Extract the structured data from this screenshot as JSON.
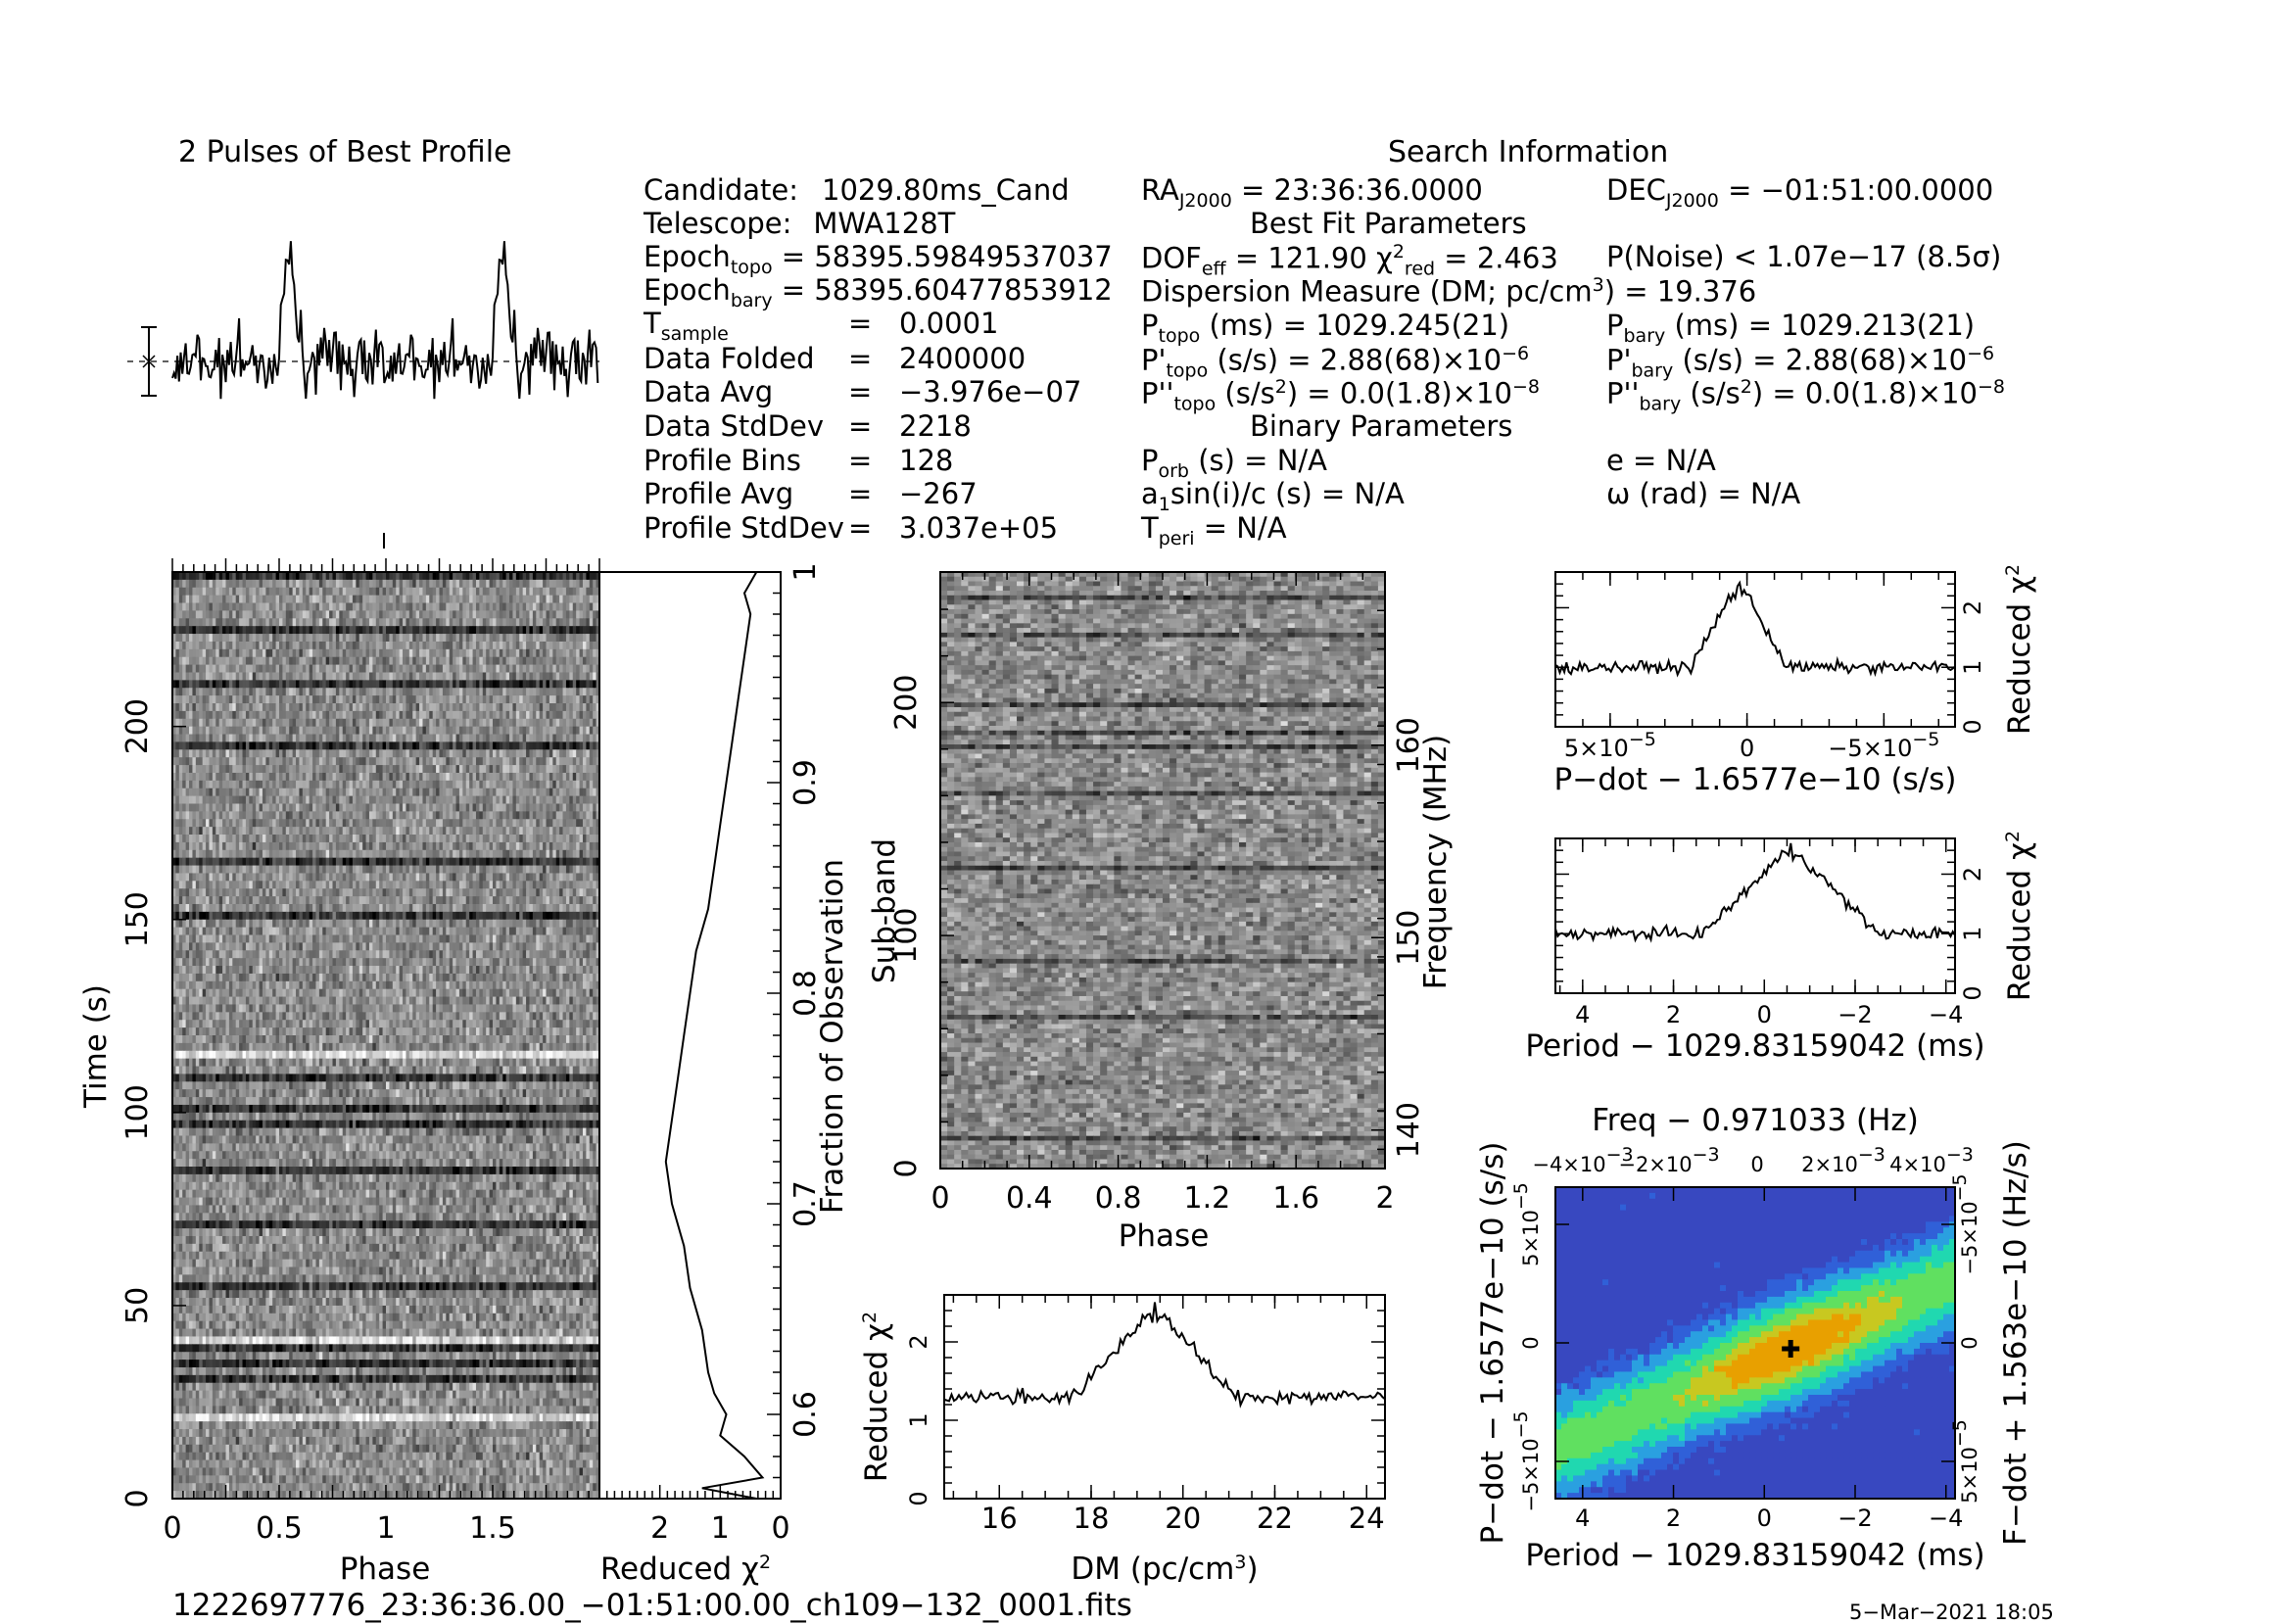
{
  "profile_title": "2 Pulses of Best Profile",
  "search_title": "Search Information",
  "candidate": {
    "candidate_label": "Candidate:",
    "candidate_value": "1029.80ms_Cand",
    "telescope_label": "Telescope:",
    "telescope_value": "MWA128T",
    "epoch_topo_label": "Epoch",
    "epoch_topo_sub": "topo",
    "epoch_topo_value": "= 58395.59849537037",
    "epoch_bary_label": "Epoch",
    "epoch_bary_sub": "bary",
    "epoch_bary_value": "= 58395.60477853912",
    "tsample_label": "T",
    "tsample_sub": "sample",
    "tsample_value": "0.0001",
    "data_folded_label": "Data Folded",
    "data_folded_value": "2400000",
    "data_avg_label": "Data Avg",
    "data_avg_value": "−3.976e−07",
    "data_stddev_label": "Data StdDev",
    "data_stddev_value": "2218",
    "profile_bins_label": "Profile Bins",
    "profile_bins_value": "128",
    "profile_avg_label": "Profile Avg",
    "profile_avg_value": "−267",
    "profile_stddev_label": "Profile StdDev",
    "profile_stddev_value": "3.037e+05",
    "equals": "="
  },
  "search": {
    "ra_label": "RA",
    "ra_sub": "J2000",
    "ra_value": "= 23:36:36.0000",
    "dec_label": "DEC",
    "dec_sub": "J2000",
    "dec_value": "= −01:51:00.0000",
    "best_fit_header": "Best Fit Parameters",
    "dof_label": "DOF",
    "dof_sub": "eff",
    "dof_value": "= 121.90",
    "chi_label": "χ",
    "chi_sup": "2",
    "chi_sub": "red",
    "chi_value": "= 2.463",
    "pnoise": "P(Noise) < 1.07e−17   (8.5σ)",
    "dm_text": "Dispersion Measure (DM; pc/cm",
    "dm_sup": "3",
    "dm_value": ") = 19.376",
    "ptopo_label": "P",
    "ptopo_sub": "topo",
    "ptopo_value": " (ms) =   1029.245(21)",
    "pbary_label": "P",
    "pbary_sub": "bary",
    "pbary_value": " (ms) =   1029.213(21)",
    "pdtopo_label": "P'",
    "pdtopo_sub": "topo",
    "pdtopo_value": " (s/s) =   2.88(68)×10",
    "pdtopo_exp": "−6",
    "pdbary_label": "P'",
    "pdbary_sub": "bary",
    "pdbary_value": " (s/s) =   2.88(68)×10",
    "pdbary_exp": "−6",
    "pddtopo_label": "P''",
    "pddtopo_sub": "topo",
    "pddtopo_value": " (s/s",
    "pddtopo_sup": "2",
    "pddtopo_value2": ") = 0.0(1.8)×10",
    "pddtopo_exp": "−8",
    "pddbary_label": "P''",
    "pddbary_sub": "bary",
    "pddbary_value": " (s/s",
    "pddbary_sup": "2",
    "pddbary_value2": ") = 0.0(1.8)×10",
    "pddbary_exp": "−8",
    "binary_header": "Binary Parameters",
    "porb_label": "P",
    "porb_sub": "orb",
    "porb_value": " (s) = N/A",
    "e_value": "e = N/A",
    "a1_label": "a",
    "a1_sub": "1",
    "a1_value": "sin(i)/c (s) = N/A",
    "omega_value": "ω (rad) = N/A",
    "tperi_label": "T",
    "tperi_sub": "peri",
    "tperi_value": " = N/A"
  },
  "footer": {
    "filename": "1222697776_23:36:36.00_−01:51:00.00_ch109−132_0001.fits",
    "date": "5−Mar−2021 18:05"
  },
  "colors": {
    "ink": "#000000",
    "plane_bg": "#3a55c8",
    "plane_mid": "#20e0a8",
    "plane_peak": "#e8a000"
  },
  "chart_data": [
    {
      "id": "time_phase",
      "type": "heatmap",
      "xlabel": "Phase",
      "ylabel": "Time (s)",
      "xlim": [
        0,
        2
      ],
      "ylim": [
        0,
        240
      ],
      "xticks": [
        "0",
        "0.5",
        "1",
        "1.5"
      ],
      "yticks": [
        "0",
        "50",
        "100",
        "150",
        "200"
      ],
      "ytick_values": [
        0,
        50,
        100,
        150,
        200
      ]
    },
    {
      "id": "fraction_chi",
      "type": "line",
      "xlabel": "Reduced χ",
      "xlabel_sup": "2",
      "ylabel": "Fraction of Observation",
      "xlim": [
        3,
        0
      ],
      "ylim": [
        0.56,
        1.0
      ],
      "xticks": [
        "2",
        "1",
        "0"
      ],
      "yticks": [
        "0.6",
        "0.7",
        "0.8",
        "0.9",
        "1"
      ],
      "points": [
        [
          0.4,
          0.56
        ],
        [
          1.3,
          0.565
        ],
        [
          0.3,
          0.57
        ],
        [
          0.6,
          0.58
        ],
        [
          1.0,
          0.59
        ],
        [
          0.9,
          0.6
        ],
        [
          1.1,
          0.61
        ],
        [
          1.2,
          0.62
        ],
        [
          1.3,
          0.64
        ],
        [
          1.5,
          0.66
        ],
        [
          1.6,
          0.68
        ],
        [
          1.8,
          0.7
        ],
        [
          1.9,
          0.72
        ],
        [
          1.8,
          0.74
        ],
        [
          1.7,
          0.76
        ],
        [
          1.6,
          0.78
        ],
        [
          1.5,
          0.8
        ],
        [
          1.4,
          0.82
        ],
        [
          1.2,
          0.84
        ],
        [
          1.1,
          0.86
        ],
        [
          1.0,
          0.88
        ],
        [
          0.9,
          0.9
        ],
        [
          0.8,
          0.92
        ],
        [
          0.7,
          0.94
        ],
        [
          0.6,
          0.96
        ],
        [
          0.5,
          0.98
        ],
        [
          0.6,
          0.99
        ],
        [
          0.4,
          1.0
        ]
      ]
    },
    {
      "id": "subband_phase",
      "type": "heatmap",
      "xlabel": "Phase",
      "ylabel": "Sub-band",
      "y2label": "Frequency (MHz)",
      "xlim": [
        0,
        2
      ],
      "ylim": [
        0,
        256
      ],
      "xticks": [
        "0",
        "0.4",
        "0.8",
        "1.2",
        "1.6",
        "2"
      ],
      "yticks": [
        "0",
        "100",
        "200"
      ],
      "ytick_values": [
        0,
        100,
        200
      ],
      "y2ticks": [
        "140",
        "150",
        "160"
      ],
      "y2tick_values": [
        140,
        150,
        160
      ],
      "y2lim": [
        138,
        169
      ]
    },
    {
      "id": "dm_chi",
      "type": "line",
      "xlabel": "DM (pc/cm",
      "xlabel_sup": "3",
      "ylabel": "Reduced χ",
      "ylabel_sup": "2",
      "xlim": [
        14.8,
        24.4
      ],
      "ylim": [
        0,
        2.6
      ],
      "xticks": [
        "16",
        "18",
        "20",
        "22",
        "24"
      ],
      "xtick_values": [
        16,
        18,
        20,
        22,
        24
      ],
      "yticks": [
        "0",
        "1",
        "2"
      ],
      "ytick_values": [
        0,
        1,
        2
      ],
      "peak_x": 19.38,
      "peak_y": 2.46,
      "baseline": 1.3
    },
    {
      "id": "pdot_chi",
      "type": "line",
      "xlabel": "P−dot − 1.6577e−10 (s/s)",
      "ylabel": "Reduced χ",
      "ylabel_sup": "2",
      "xlim": [
        7e-05,
        -7.6e-05
      ],
      "ylim": [
        0,
        2.6
      ],
      "xticks": [
        "5×10",
        "0",
        "−5×10"
      ],
      "xtick_exp": "−5",
      "xtick_values": [
        5e-05,
        0,
        -5e-05
      ],
      "yticks": [
        "0",
        "1",
        "2"
      ],
      "ytick_values": [
        0,
        1,
        2
      ],
      "peak_x": 2.9e-06,
      "peak_y": 2.46,
      "baseline": 1.0
    },
    {
      "id": "period_chi",
      "type": "line",
      "xlabel": "Period − 1029.83159042 (ms)",
      "ylabel": "Reduced χ",
      "ylabel_sup": "2",
      "xlim": [
        4.6,
        -4.2
      ],
      "ylim": [
        0,
        2.6
      ],
      "xticks": [
        "4",
        "2",
        "0",
        "−2",
        "−4"
      ],
      "xtick_values": [
        4,
        2,
        0,
        -2,
        -4
      ],
      "yticks": [
        "0",
        "1",
        "2"
      ],
      "ytick_values": [
        0,
        1,
        2
      ],
      "peak_x": -0.58,
      "peak_y": 2.46,
      "baseline": 1.0
    },
    {
      "id": "ppdot_plane",
      "type": "heatmap",
      "title": "Freq − 0.971033 (Hz)",
      "xlabel": "Period − 1029.83159042 (ms)",
      "ylabel": "P−dot − 1.6577e−10 (s/s)",
      "y2label": "F−dot + 1.563e−10 (Hz/s)",
      "xlim": [
        4.6,
        -4.2
      ],
      "xticks": [
        "4",
        "2",
        "0",
        "−2",
        "−4"
      ],
      "xtick_values": [
        4,
        2,
        0,
        -2,
        -4
      ],
      "top_ticks": [
        "−4×10",
        "−2×10",
        "0",
        "2×10",
        "4×10"
      ],
      "top_exp": "−3",
      "yticks": [
        "5×10",
        "0",
        "−5×10"
      ],
      "ytick_exp": "−5",
      "y2ticks": [
        "−5×10",
        "0",
        "5×10"
      ],
      "y2tick_exp": "−5",
      "best_x": -0.58,
      "best_pdot": 0.0
    },
    {
      "id": "pulse_profile",
      "type": "line",
      "title": "2 Pulses of Best Profile",
      "xlim": [
        0,
        2
      ],
      "bins": 128,
      "peak_phase": 0.55
    }
  ]
}
